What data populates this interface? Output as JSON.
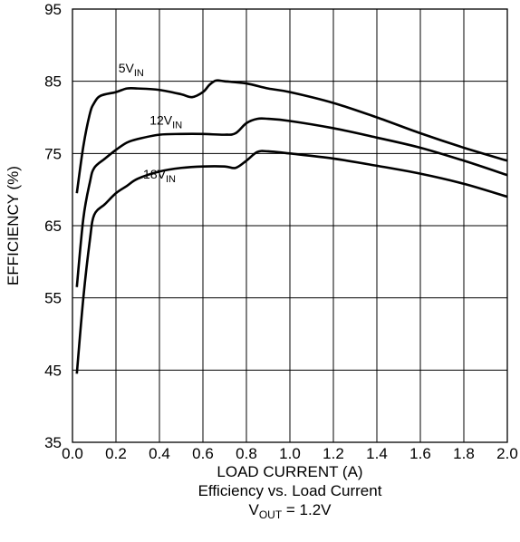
{
  "chart_data": {
    "type": "line",
    "xlabel": "LOAD CURRENT (A)",
    "ylabel": "EFFICIENCY (%)",
    "xlim": [
      0.0,
      2.0
    ],
    "ylim": [
      35,
      95
    ],
    "x_ticks": [
      "0.0",
      "0.2",
      "0.4",
      "0.6",
      "0.8",
      "1.0",
      "1.2",
      "1.4",
      "1.6",
      "1.8",
      "2.0"
    ],
    "y_ticks": [
      "35",
      "45",
      "55",
      "65",
      "75",
      "85",
      "95"
    ],
    "grid": true,
    "legend": "none",
    "series": [
      {
        "name": "5V",
        "name_subscript": "IN",
        "x": [
          0.02,
          0.05,
          0.08,
          0.1,
          0.13,
          0.2,
          0.25,
          0.3,
          0.4,
          0.5,
          0.55,
          0.6,
          0.63,
          0.66,
          0.7,
          0.8,
          0.9,
          1.0,
          1.2,
          1.4,
          1.6,
          1.8,
          2.0
        ],
        "y": [
          69.5,
          76,
          80.5,
          82,
          83,
          83.5,
          84,
          84,
          83.8,
          83.2,
          82.8,
          83.5,
          84.5,
          85.1,
          85,
          84.7,
          84,
          83.5,
          82,
          80,
          77.8,
          75.8,
          74
        ]
      },
      {
        "name": "12V",
        "name_subscript": "IN",
        "x": [
          0.02,
          0.05,
          0.08,
          0.1,
          0.15,
          0.2,
          0.25,
          0.3,
          0.4,
          0.5,
          0.6,
          0.7,
          0.75,
          0.8,
          0.85,
          0.9,
          1.0,
          1.2,
          1.4,
          1.6,
          1.8,
          2.0
        ],
        "y": [
          56.5,
          66,
          71,
          73,
          74.3,
          75.5,
          76.5,
          77,
          77.6,
          77.7,
          77.7,
          77.6,
          77.8,
          79.2,
          79.8,
          79.8,
          79.5,
          78.5,
          77.2,
          75.8,
          74,
          72
        ]
      },
      {
        "name": "18V",
        "name_subscript": "IN",
        "x": [
          0.02,
          0.05,
          0.08,
          0.1,
          0.15,
          0.2,
          0.25,
          0.3,
          0.4,
          0.5,
          0.6,
          0.7,
          0.75,
          0.8,
          0.85,
          0.9,
          1.0,
          1.2,
          1.4,
          1.6,
          1.8,
          2.0
        ],
        "y": [
          44.5,
          55,
          63,
          66.5,
          68,
          69.5,
          70.5,
          71.5,
          72.5,
          73,
          73.2,
          73.2,
          73,
          74,
          75.2,
          75.3,
          75,
          74.3,
          73.3,
          72.2,
          70.8,
          69
        ]
      }
    ],
    "caption": {
      "line1": "Efficiency vs. Load Current",
      "line2_prefix": "V",
      "line2_subscript": "OUT",
      "line2_suffix": " = 1.2V"
    }
  }
}
